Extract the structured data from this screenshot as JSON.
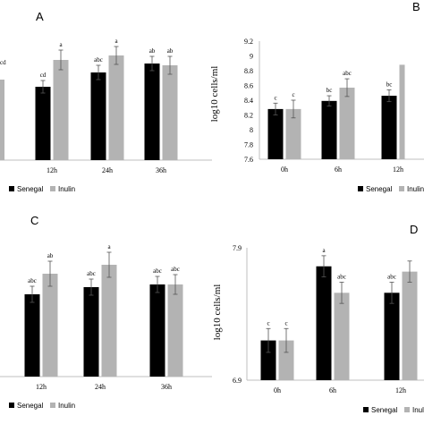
{
  "colors": {
    "senegal": "#000000",
    "inulin": "#b3b3b3",
    "axis": "#bfbfbf",
    "error": "#555555"
  },
  "legend": {
    "senegal": "Senegal",
    "inulin": "Inulin"
  },
  "chart_data": [
    {
      "panel": "A",
      "type": "bar",
      "categories": [
        "12h",
        "24h",
        "36h"
      ],
      "series": [
        {
          "name": "Senegal",
          "values": [
            null,
            null,
            null
          ],
          "errors": [
            null,
            null,
            null
          ],
          "labels": [
            "cd",
            "abc",
            "ab"
          ]
        },
        {
          "name": "Inulin",
          "values": [
            null,
            null,
            null
          ],
          "errors": [
            null,
            null,
            null
          ],
          "labels": [
            "a",
            "a",
            "ab"
          ]
        }
      ],
      "partial_label": "cd",
      "ylabel": "",
      "yticks": [],
      "legend_placement": "bottom"
    },
    {
      "panel": "B",
      "type": "bar",
      "categories": [
        "0h",
        "6h",
        "12h"
      ],
      "series": [
        {
          "name": "Senegal",
          "values": [
            8.28,
            8.39,
            8.46
          ],
          "errors": [
            0.08,
            0.07,
            0.08
          ],
          "labels": [
            "c",
            "bc",
            "bc"
          ]
        },
        {
          "name": "Inulin",
          "values": [
            8.28,
            8.57,
            8.88
          ],
          "errors": [
            0.12,
            0.12,
            null
          ],
          "labels": [
            "c",
            "abc",
            ""
          ]
        }
      ],
      "ylabel": "log10 cells/ml",
      "ylim": [
        7.6,
        9.2
      ],
      "yticks": [
        "7.6",
        "7.8",
        "8",
        "8.2",
        "8.4",
        "8.6",
        "8.8",
        "9",
        "9.2"
      ],
      "legend_placement": "bottom"
    },
    {
      "panel": "C",
      "type": "bar",
      "categories": [
        "12h",
        "24h",
        "36h"
      ],
      "series": [
        {
          "name": "Senegal",
          "values": [
            null,
            null,
            null
          ],
          "errors": [
            null,
            null,
            null
          ],
          "labels": [
            "abc",
            "abc",
            "abc"
          ]
        },
        {
          "name": "Inulin",
          "values": [
            null,
            null,
            null
          ],
          "errors": [
            null,
            null,
            null
          ],
          "labels": [
            "ab",
            "a",
            "abc"
          ]
        }
      ],
      "ylabel": "",
      "yticks": [],
      "legend_placement": "bottom"
    },
    {
      "panel": "D",
      "type": "bar",
      "categories": [
        "0h",
        "6h",
        "12h"
      ],
      "series": [
        {
          "name": "Senegal",
          "values": [
            7.2,
            7.76,
            7.56
          ],
          "errors": [
            0.09,
            0.08,
            0.08
          ],
          "labels": [
            "c",
            "a",
            "abc"
          ]
        },
        {
          "name": "Inulin",
          "values": [
            7.2,
            7.56,
            7.72
          ],
          "errors": [
            0.09,
            0.08,
            0.08
          ],
          "labels": [
            "c",
            "abc",
            ""
          ]
        }
      ],
      "ylabel": "log10 cells/ml",
      "ylim": [
        6.9,
        7.9
      ],
      "yticks": [
        "6.9",
        "7.9"
      ],
      "legend_placement": "bottom"
    }
  ]
}
